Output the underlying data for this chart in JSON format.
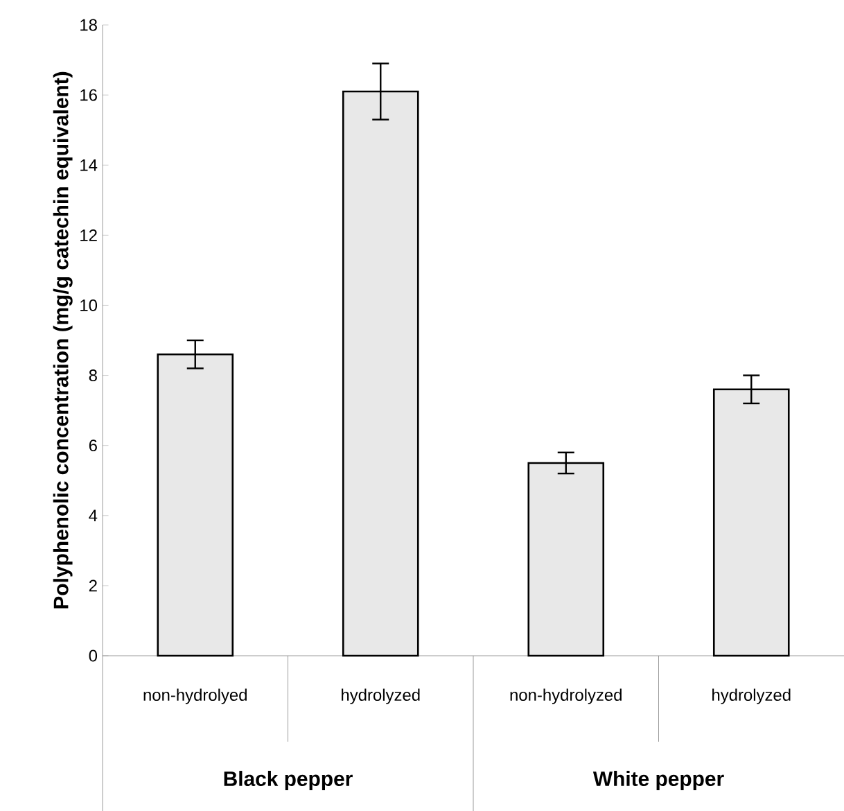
{
  "chart_data": {
    "type": "bar",
    "ylabel": "Polyphenolic concentration (mg/g catechin equivalent)",
    "categories": [
      "non-hydrolyed",
      "hydrolyzed",
      "non-hydrolyzed",
      "hydrolyzed"
    ],
    "values": [
      8.6,
      16.1,
      5.5,
      7.6
    ],
    "errors": [
      0.4,
      0.8,
      0.3,
      0.4
    ],
    "color": "#e8e8e8",
    "ylim": [
      0,
      18
    ],
    "yticks": [
      0,
      2,
      4,
      6,
      8,
      10,
      12,
      14,
      16,
      18
    ],
    "annotations": [
      "Black pepper",
      "White pepper"
    ]
  }
}
